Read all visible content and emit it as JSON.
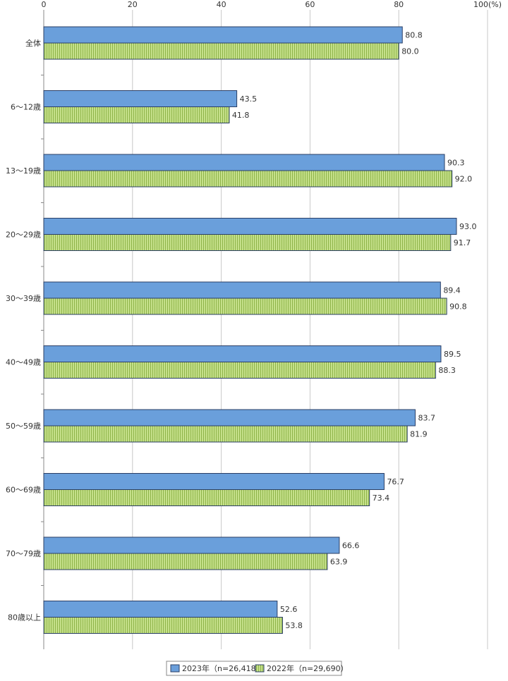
{
  "chart_data": {
    "type": "bar",
    "orientation": "horizontal",
    "categories": [
      "全体",
      "6～12歳",
      "13～19歳",
      "20～29歳",
      "30～39歳",
      "40～49歳",
      "50～59歳",
      "60～69歳",
      "70～79歳",
      "80歳以上"
    ],
    "series": [
      {
        "name": "2023年（n=26,418）",
        "color": "#6a9fdb",
        "pattern": "solid",
        "values": [
          80.8,
          43.5,
          90.3,
          93.0,
          89.4,
          89.5,
          83.7,
          76.7,
          66.6,
          52.6
        ]
      },
      {
        "name": "2022年（n=29,690）",
        "color": "#c5e08a",
        "pattern": "vertical-stripes",
        "values": [
          80.0,
          41.8,
          92.0,
          91.7,
          90.8,
          88.3,
          81.9,
          73.4,
          63.9,
          53.8
        ]
      }
    ],
    "x_ticks": [
      "0",
      "20",
      "40",
      "60",
      "80",
      "100(%)"
    ],
    "xlim": [
      0,
      100
    ],
    "grid": true,
    "legend_position": "bottom-center",
    "title": "",
    "xlabel": "",
    "ylabel": ""
  }
}
